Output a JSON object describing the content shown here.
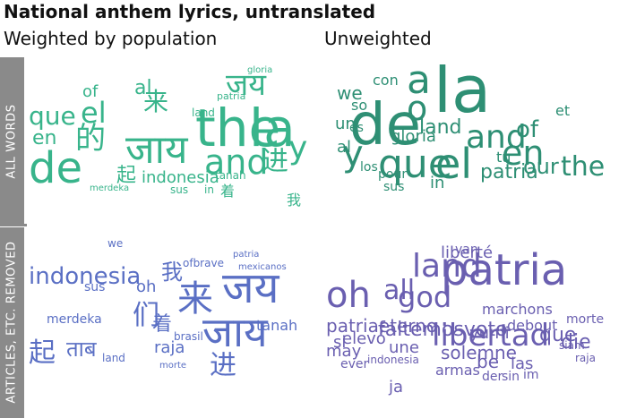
{
  "title": "National anthem lyrics, untranslated",
  "columns": {
    "left": "Weighted by population",
    "right": "Unweighted"
  },
  "rows": {
    "top": "ALL WORDS",
    "bottom": "ARTICLES, ETC. REMOVED"
  },
  "colors": {
    "green_light": "#38b48b",
    "green_dark": "#2e8f74",
    "blue": "#5a6fc4",
    "purple": "#6a5fb0",
    "band": "#8a8a8a"
  },
  "clouds": {
    "tl": {
      "words": [
        {
          "text": "the",
          "class": "g"
        },
        {
          "text": "la",
          "class": "g"
        },
        {
          "text": "de",
          "class": "g"
        },
        {
          "text": "जाय",
          "class": "g"
        },
        {
          "text": "and",
          "class": "g"
        },
        {
          "text": "的",
          "class": "g"
        },
        {
          "text": "y",
          "class": "g"
        },
        {
          "text": "el",
          "class": "g"
        },
        {
          "text": "que",
          "class": "g"
        },
        {
          "text": "en",
          "class": "g"
        },
        {
          "text": "of",
          "class": "g"
        },
        {
          "text": "जय",
          "class": "g"
        },
        {
          "text": "来",
          "class": "g"
        },
        {
          "text": "al",
          "class": "g"
        },
        {
          "text": "起",
          "class": "g"
        },
        {
          "text": "进",
          "class": "g"
        },
        {
          "text": "indonesia",
          "class": "g"
        },
        {
          "text": "tanah",
          "class": "g"
        },
        {
          "text": "merdeka",
          "class": "g"
        },
        {
          "text": "我",
          "class": "g"
        },
        {
          "text": "着",
          "class": "g"
        },
        {
          "text": "gloria",
          "class": "g"
        },
        {
          "text": "patria",
          "class": "g"
        },
        {
          "text": "land",
          "class": "g"
        },
        {
          "text": "sus",
          "class": "g"
        },
        {
          "text": "in",
          "class": "g"
        }
      ]
    },
    "tr": {
      "words": [
        {
          "text": "la",
          "class": "g2"
        },
        {
          "text": "de",
          "class": "g2"
        },
        {
          "text": "a",
          "class": "g2"
        },
        {
          "text": "o",
          "class": "g2"
        },
        {
          "text": "que",
          "class": "g2"
        },
        {
          "text": "el",
          "class": "g2"
        },
        {
          "text": "and",
          "class": "g2"
        },
        {
          "text": "en",
          "class": "g2"
        },
        {
          "text": "the",
          "class": "g2"
        },
        {
          "text": "our",
          "class": "g2"
        },
        {
          "text": "y",
          "class": "g2"
        },
        {
          "text": "land",
          "class": "g2"
        },
        {
          "text": "of",
          "class": "g2"
        },
        {
          "text": "we",
          "class": "g2"
        },
        {
          "text": "un",
          "class": "g2"
        },
        {
          "text": "so",
          "class": "g2"
        },
        {
          "text": "al",
          "class": "g2"
        },
        {
          "text": "gloria",
          "class": "g2"
        },
        {
          "text": "los",
          "class": "g2"
        },
        {
          "text": "patria",
          "class": "g2"
        },
        {
          "text": "tu",
          "class": "g2"
        },
        {
          "text": "et",
          "class": "g2"
        },
        {
          "text": "es",
          "class": "g2"
        },
        {
          "text": "sus",
          "class": "g2"
        },
        {
          "text": "in",
          "class": "g2"
        },
        {
          "text": "con",
          "class": "g2"
        },
        {
          "text": "pour",
          "class": "g2"
        }
      ]
    },
    "bl": {
      "words": [
        {
          "text": "indonesia",
          "class": "b"
        },
        {
          "text": "जय",
          "class": "b"
        },
        {
          "text": "来",
          "class": "b"
        },
        {
          "text": "जाय",
          "class": "b"
        },
        {
          "text": "进",
          "class": "b"
        },
        {
          "text": "起",
          "class": "b"
        },
        {
          "text": "我",
          "class": "b"
        },
        {
          "text": "们",
          "class": "b"
        },
        {
          "text": "着",
          "class": "b"
        },
        {
          "text": "merdeka",
          "class": "b"
        },
        {
          "text": "tanah",
          "class": "b"
        },
        {
          "text": "raja",
          "class": "b"
        },
        {
          "text": "ताब",
          "class": "b"
        },
        {
          "text": "oh",
          "class": "b"
        },
        {
          "text": "land",
          "class": "b"
        },
        {
          "text": "patria",
          "class": "b"
        },
        {
          "text": "sus",
          "class": "b"
        },
        {
          "text": "we",
          "class": "b"
        },
        {
          "text": "mexicanos",
          "class": "b"
        },
        {
          "text": "ofbrave",
          "class": "b"
        },
        {
          "text": "brasil",
          "class": "b"
        },
        {
          "text": "morte",
          "class": "b"
        }
      ]
    },
    "br": {
      "words": [
        {
          "text": "patria",
          "class": "b2"
        },
        {
          "text": "land",
          "class": "b2"
        },
        {
          "text": "oh",
          "class": "b2"
        },
        {
          "text": "god",
          "class": "b2"
        },
        {
          "text": "libertad",
          "class": "b2"
        },
        {
          "text": "all",
          "class": "b2"
        },
        {
          "text": "faltemosvoto",
          "class": "b2"
        },
        {
          "text": "patriaeterno",
          "class": "b2"
        },
        {
          "text": "indonesia",
          "class": "b2"
        },
        {
          "text": "elevó",
          "class": "b2"
        },
        {
          "text": "solemne",
          "class": "b2"
        },
        {
          "text": "marchons",
          "class": "b2"
        },
        {
          "text": "yumi",
          "class": "b2"
        },
        {
          "text": "que",
          "class": "b2"
        },
        {
          "text": "debout",
          "class": "b2"
        },
        {
          "text": "liberté",
          "class": "b2"
        },
        {
          "text": "si",
          "class": "b2"
        },
        {
          "text": "may",
          "class": "b2"
        },
        {
          "text": "die",
          "class": "b2"
        },
        {
          "text": "morte",
          "class": "b2"
        },
        {
          "text": "be",
          "class": "b2"
        },
        {
          "text": "las",
          "class": "b2"
        },
        {
          "text": "une",
          "class": "b2"
        },
        {
          "text": "armas",
          "class": "b2"
        },
        {
          "text": "der",
          "class": "b2"
        },
        {
          "text": "sin",
          "class": "b2"
        },
        {
          "text": "im",
          "class": "b2"
        },
        {
          "text": "ever",
          "class": "b2"
        },
        {
          "text": "siam",
          "class": "b2"
        },
        {
          "text": "raja",
          "class": "b2"
        },
        {
          "text": "ja",
          "class": "b2"
        },
        {
          "text": "van",
          "class": "b2"
        }
      ]
    }
  }
}
